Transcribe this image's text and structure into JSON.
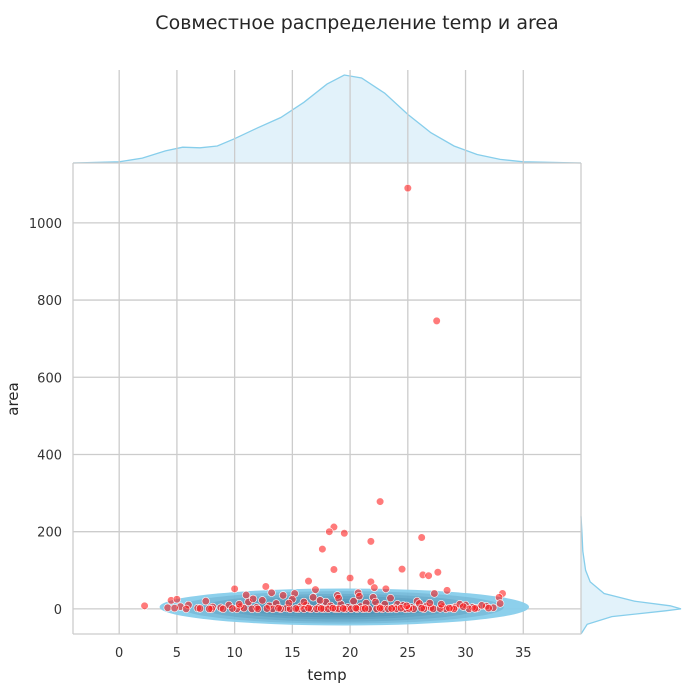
{
  "chart_data": {
    "type": "scatter",
    "title": "Совместное распределение temp и area",
    "xlabel": "temp",
    "ylabel": "area",
    "xlim": [
      -4,
      40
    ],
    "ylim": [
      -65,
      1155
    ],
    "xticks": [
      0,
      5,
      10,
      15,
      20,
      25,
      30,
      35
    ],
    "yticks": [
      0,
      200,
      400,
      600,
      800,
      1000
    ],
    "grid": true,
    "colors": {
      "points": "#ff1a1a",
      "kde_fill": "#87ceeb",
      "kde_dark": "#3e7fa6",
      "marginal_line": "#87ceeb",
      "marginal_fill": "#dff1f9",
      "grid": "#cccccc"
    },
    "marginal_x_density": [
      [
        -4,
        0.0
      ],
      [
        0,
        0.002
      ],
      [
        2,
        0.008
      ],
      [
        4,
        0.02
      ],
      [
        5.5,
        0.026
      ],
      [
        7,
        0.025
      ],
      [
        8.5,
        0.028
      ],
      [
        10,
        0.04
      ],
      [
        12,
        0.058
      ],
      [
        14,
        0.075
      ],
      [
        16,
        0.1
      ],
      [
        18,
        0.13
      ],
      [
        19.5,
        0.145
      ],
      [
        21,
        0.14
      ],
      [
        23,
        0.115
      ],
      [
        25,
        0.08
      ],
      [
        27,
        0.05
      ],
      [
        29,
        0.028
      ],
      [
        31,
        0.014
      ],
      [
        33,
        0.006
      ],
      [
        35,
        0.002
      ],
      [
        40,
        0.0
      ]
    ],
    "marginal_y_density": [
      [
        -65,
        0.0
      ],
      [
        -40,
        0.04
      ],
      [
        -20,
        0.2
      ],
      [
        -5,
        0.55
      ],
      [
        0,
        0.65
      ],
      [
        8,
        0.58
      ],
      [
        20,
        0.35
      ],
      [
        40,
        0.15
      ],
      [
        70,
        0.06
      ],
      [
        100,
        0.03
      ],
      [
        150,
        0.012
      ],
      [
        200,
        0.006
      ],
      [
        240,
        0.0
      ]
    ],
    "points": [
      [
        25.0,
        1090
      ],
      [
        27.5,
        746
      ],
      [
        22.6,
        278
      ],
      [
        18.6,
        212
      ],
      [
        26.2,
        185
      ],
      [
        18.2,
        200
      ],
      [
        19.5,
        196
      ],
      [
        21.8,
        175
      ],
      [
        17.6,
        155
      ],
      [
        18.6,
        102
      ],
      [
        27.6,
        95
      ],
      [
        26.3,
        88
      ],
      [
        26.8,
        86
      ],
      [
        24.5,
        103
      ],
      [
        21.8,
        70
      ],
      [
        20.0,
        80
      ],
      [
        16.4,
        72
      ],
      [
        23.1,
        52
      ],
      [
        10.0,
        52
      ],
      [
        12.7,
        58
      ],
      [
        28.4,
        48
      ],
      [
        33.2,
        40
      ],
      [
        32.9,
        30
      ],
      [
        17.0,
        50
      ],
      [
        20.7,
        42
      ],
      [
        14.2,
        35
      ],
      [
        11.0,
        36
      ],
      [
        15.2,
        40
      ],
      [
        22.1,
        55
      ],
      [
        23.5,
        28
      ],
      [
        24.1,
        12
      ],
      [
        25.8,
        20
      ],
      [
        27.3,
        40
      ],
      [
        29.1,
        5
      ],
      [
        30.0,
        10
      ],
      [
        31.0,
        2
      ],
      [
        2.2,
        8
      ],
      [
        4.5,
        22
      ],
      [
        5.0,
        25
      ],
      [
        5.3,
        6
      ],
      [
        4.2,
        3
      ],
      [
        6.0,
        10
      ],
      [
        6.8,
        2
      ],
      [
        7.5,
        20
      ],
      [
        8.1,
        5
      ],
      [
        8.8,
        3
      ],
      [
        9.5,
        10
      ],
      [
        10.5,
        6
      ],
      [
        11.2,
        18
      ],
      [
        11.9,
        4
      ],
      [
        12.4,
        22
      ],
      [
        13.0,
        8
      ],
      [
        13.6,
        14
      ],
      [
        14.5,
        2
      ],
      [
        15.0,
        25
      ],
      [
        15.7,
        6
      ],
      [
        16.2,
        10
      ],
      [
        16.8,
        30
      ],
      [
        17.3,
        4
      ],
      [
        17.9,
        18
      ],
      [
        18.3,
        8
      ],
      [
        18.9,
        35
      ],
      [
        19.2,
        12
      ],
      [
        19.8,
        4
      ],
      [
        20.3,
        20
      ],
      [
        20.9,
        6
      ],
      [
        21.4,
        15
      ],
      [
        22.0,
        30
      ],
      [
        22.5,
        5
      ],
      [
        23.0,
        12
      ],
      [
        23.8,
        3
      ],
      [
        24.6,
        9
      ],
      [
        25.3,
        4
      ],
      [
        26.0,
        14
      ],
      [
        26.6,
        7
      ],
      [
        27.0,
        3
      ],
      [
        28.0,
        6
      ],
      [
        28.8,
        2
      ],
      [
        29.5,
        12
      ],
      [
        30.6,
        4
      ],
      [
        31.8,
        7
      ],
      [
        32.4,
        3
      ],
      [
        8.0,
        0
      ],
      [
        9.0,
        0
      ],
      [
        10.2,
        0
      ],
      [
        11.5,
        0
      ],
      [
        12.0,
        0
      ],
      [
        13.3,
        0
      ],
      [
        14.0,
        0
      ],
      [
        14.8,
        0
      ],
      [
        15.5,
        0
      ],
      [
        16.0,
        0
      ],
      [
        16.6,
        0
      ],
      [
        17.1,
        0
      ],
      [
        17.7,
        0
      ],
      [
        18.1,
        0
      ],
      [
        18.7,
        0
      ],
      [
        19.0,
        0
      ],
      [
        19.6,
        0
      ],
      [
        20.1,
        0
      ],
      [
        20.6,
        0
      ],
      [
        21.1,
        0
      ],
      [
        21.6,
        0
      ],
      [
        22.3,
        0
      ],
      [
        22.8,
        0
      ],
      [
        23.3,
        0
      ],
      [
        24.0,
        0
      ],
      [
        24.8,
        0
      ],
      [
        25.5,
        0
      ],
      [
        26.4,
        0
      ],
      [
        27.2,
        0
      ],
      [
        28.3,
        0
      ],
      [
        29.0,
        0
      ],
      [
        30.3,
        0
      ],
      [
        4.8,
        2
      ],
      [
        5.8,
        0
      ],
      [
        7.0,
        1
      ],
      [
        7.8,
        0
      ],
      [
        9.8,
        1
      ],
      [
        10.8,
        2
      ],
      [
        12.8,
        1
      ],
      [
        13.8,
        2
      ],
      [
        15.3,
        1
      ],
      [
        16.4,
        2
      ],
      [
        17.5,
        1
      ],
      [
        18.5,
        2
      ],
      [
        19.4,
        1
      ],
      [
        20.5,
        2
      ],
      [
        21.3,
        1
      ],
      [
        22.6,
        2
      ],
      [
        23.6,
        1
      ],
      [
        24.4,
        2
      ],
      [
        25.1,
        1
      ],
      [
        26.2,
        2
      ],
      [
        27.8,
        1
      ],
      [
        28.6,
        2
      ],
      [
        30.8,
        1
      ],
      [
        32.0,
        2
      ],
      [
        10.4,
        12
      ],
      [
        11.6,
        26
      ],
      [
        13.2,
        42
      ],
      [
        14.7,
        15
      ],
      [
        16.0,
        18
      ],
      [
        17.4,
        22
      ],
      [
        19.0,
        28
      ],
      [
        20.8,
        33
      ],
      [
        22.2,
        18
      ],
      [
        24.9,
        8
      ],
      [
        26.9,
        15
      ],
      [
        27.9,
        12
      ],
      [
        29.8,
        6
      ],
      [
        31.4,
        9
      ],
      [
        33.0,
        14
      ]
    ],
    "kde_levels": [
      {
        "cx": 19.5,
        "cy": 5,
        "rx": 16.0,
        "ry": 48
      },
      {
        "cx": 19.3,
        "cy": 4,
        "rx": 14.0,
        "ry": 42
      },
      {
        "cx": 19.2,
        "cy": 3,
        "rx": 12.0,
        "ry": 36
      },
      {
        "cx": 19.1,
        "cy": 3,
        "rx": 10.0,
        "ry": 30
      },
      {
        "cx": 19.0,
        "cy": 2,
        "rx": 8.0,
        "ry": 24
      },
      {
        "cx": 19.0,
        "cy": 2,
        "rx": 6.0,
        "ry": 18
      },
      {
        "cx": 19.0,
        "cy": 1,
        "rx": 4.0,
        "ry": 12
      },
      {
        "cx": 19.0,
        "cy": 1,
        "rx": 2.2,
        "ry": 7
      }
    ]
  }
}
